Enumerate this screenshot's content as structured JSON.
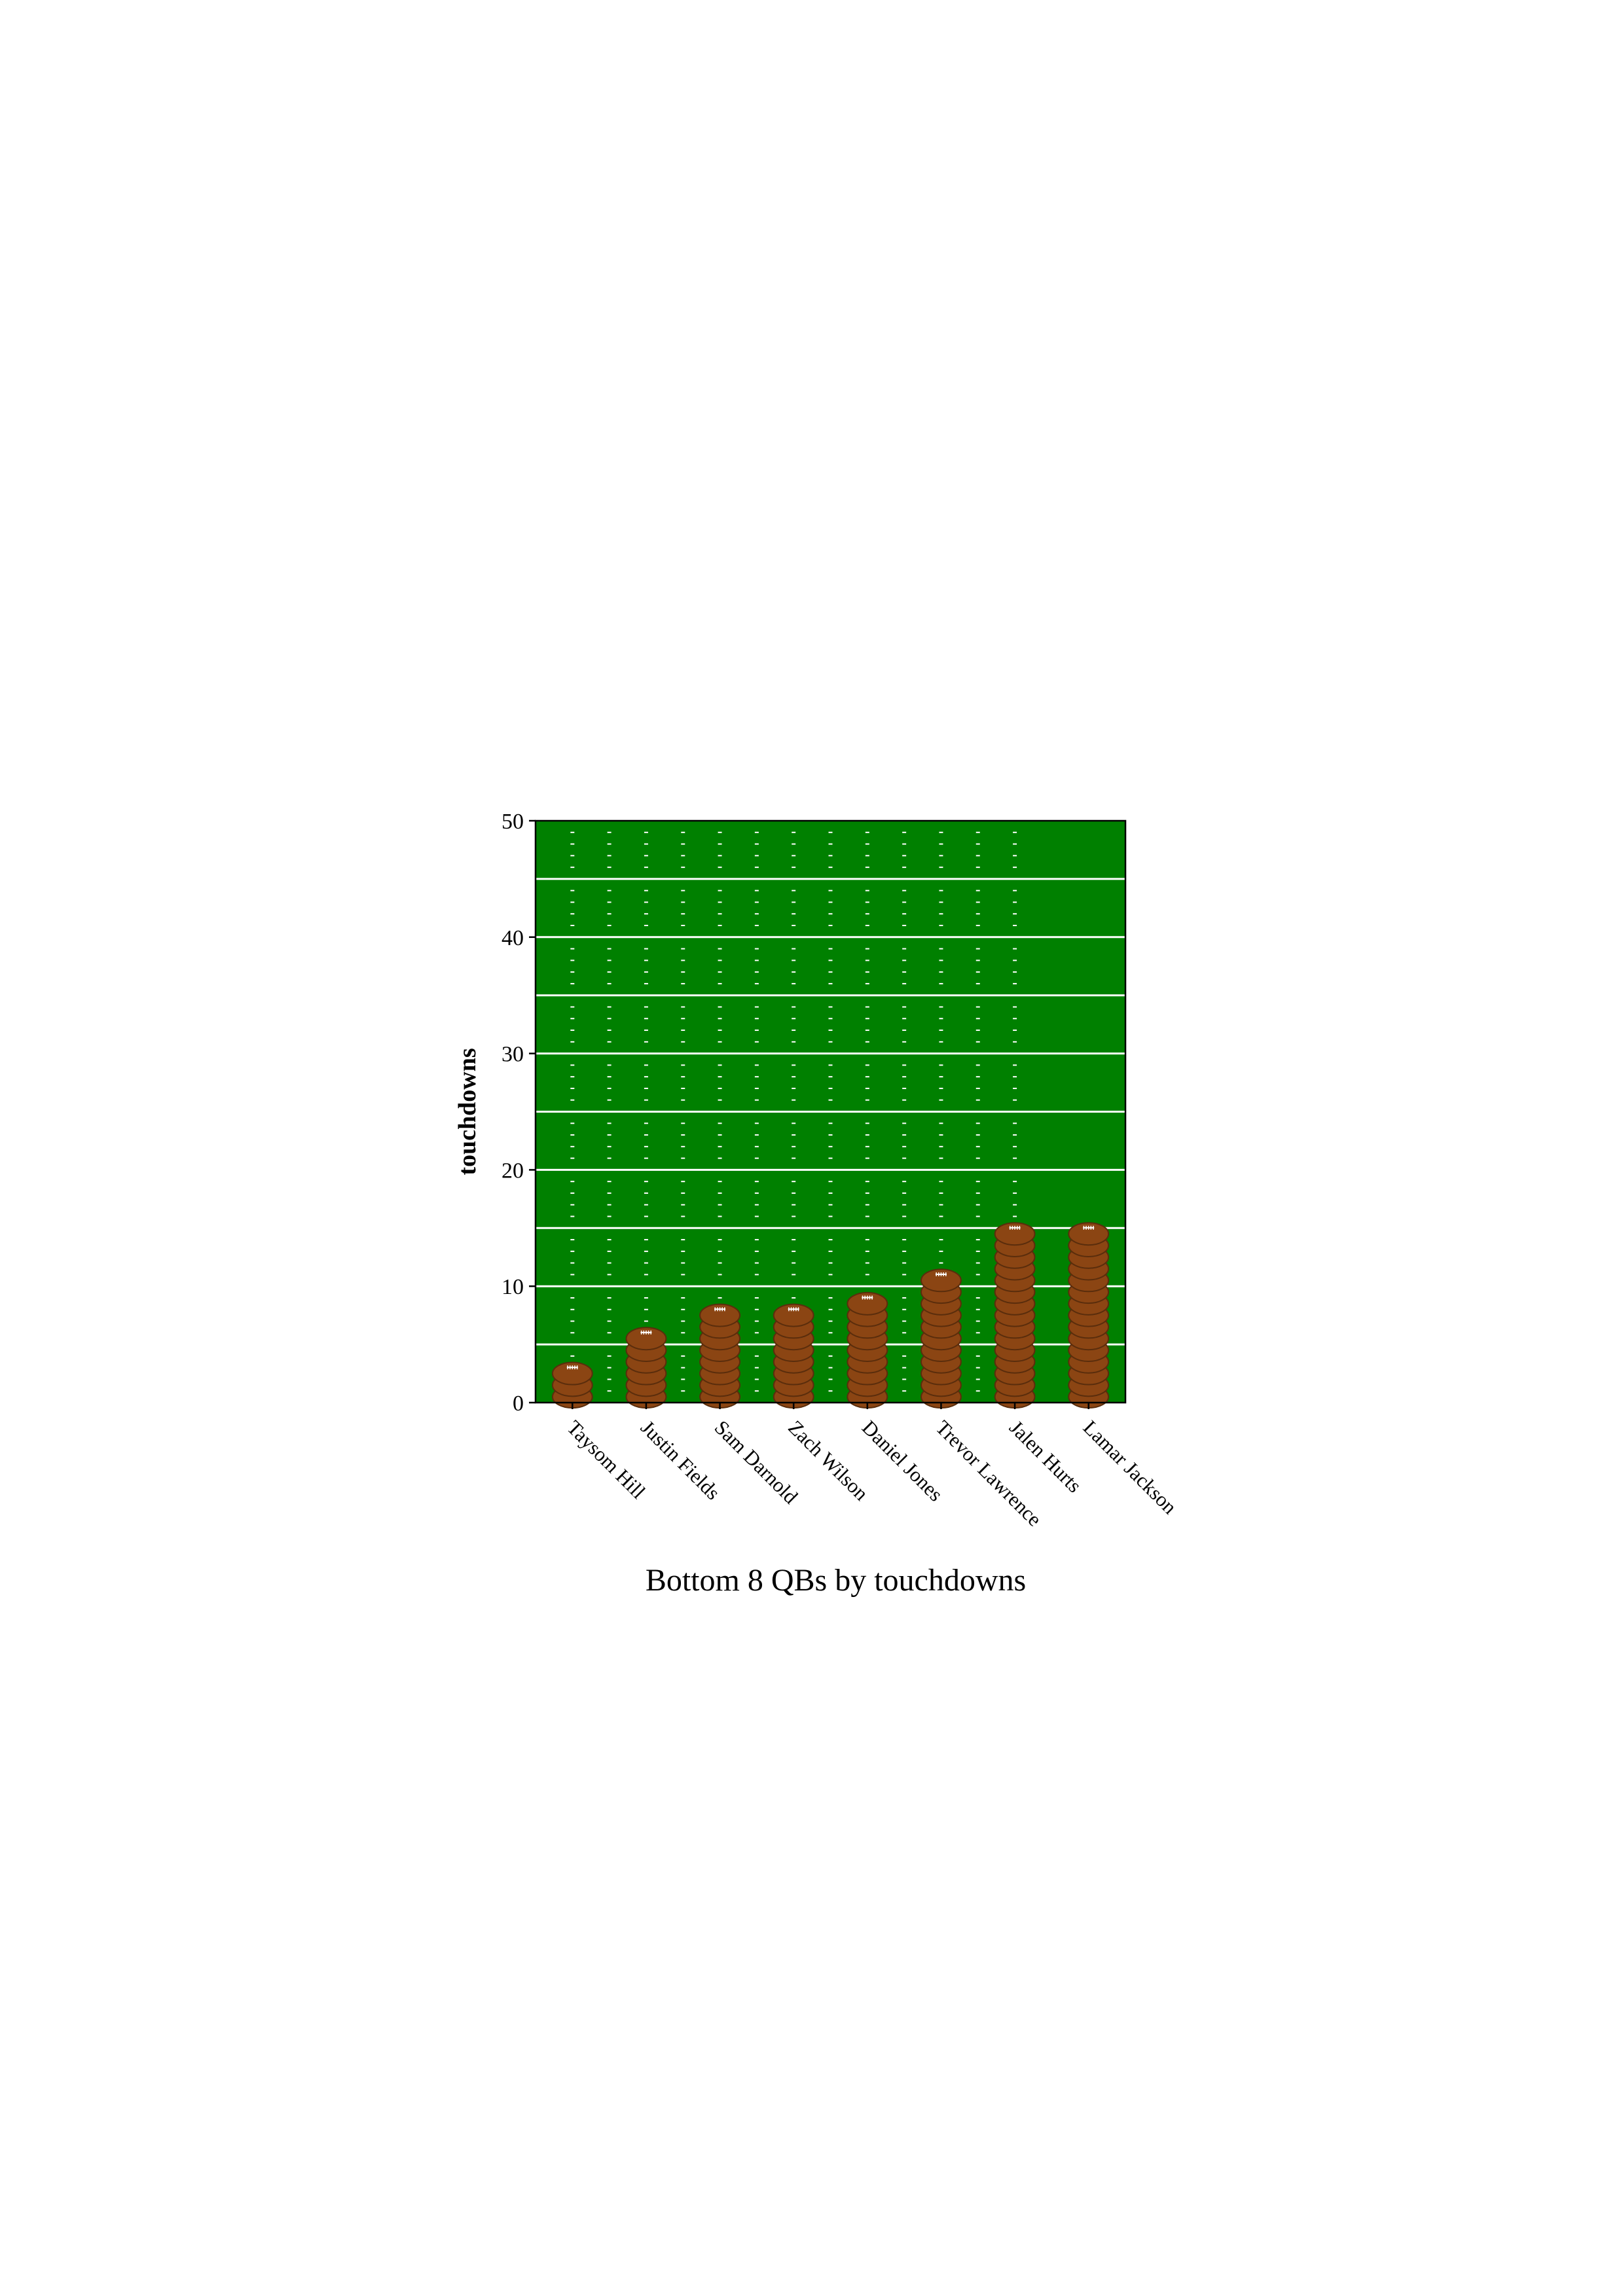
{
  "chart_data": {
    "type": "bar",
    "title": "Bottom 8 QBs by touchdowns",
    "xlabel": "",
    "ylabel": "touchdowns",
    "ylim": [
      0,
      50
    ],
    "yticks": [
      0,
      10,
      20,
      30,
      40,
      50
    ],
    "categories": [
      "Taysom Hill",
      "Justin Fields",
      "Sam Darnold",
      "Zach Wilson",
      "Daniel Jones",
      "Trevor Lawrence",
      "Jalen Hurts",
      "Lamar Jackson"
    ],
    "values": [
      3,
      6,
      8,
      8,
      9,
      11,
      15,
      15
    ],
    "marker": "football",
    "colors": {
      "field": "#008000",
      "yard_lines": "#ffffff",
      "football": "#8b4513",
      "football_outline": "#5a2d0c",
      "laces": "#ffffff"
    }
  }
}
